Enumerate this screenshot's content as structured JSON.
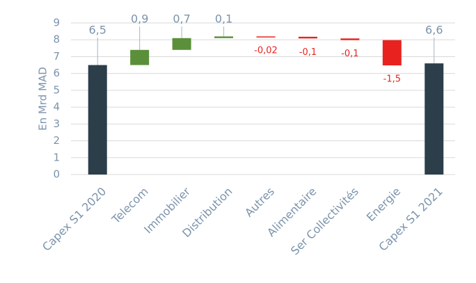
{
  "chart_data": {
    "type": "waterfall",
    "y_label": "En Mrd MAD",
    "categories": [
      "Capex S1 2020",
      "Telecom",
      "Immobilier",
      "Distribution",
      "Autres",
      "Alimentaire",
      "Ser Collectivités",
      "Energie",
      "Capex S1 2021"
    ],
    "values": [
      6.5,
      0.9,
      0.7,
      0.1,
      -0.02,
      -0.1,
      -0.1,
      -1.5,
      6.6
    ],
    "value_labels": [
      "6,5",
      "0,9",
      "0,7",
      "0,1",
      "-0,02",
      "-0,1",
      "-0,1",
      "-1,5",
      "6,6"
    ],
    "colors": [
      "#2c3e4a",
      "#5b8f3a",
      "#5b8f3a",
      "#5b8f3a",
      "#e8231f",
      "#e8231f",
      "#e8231f",
      "#e8231f",
      "#2c3e4a"
    ],
    "ylim": [
      0,
      9
    ],
    "yticks": [
      0,
      1,
      2,
      3,
      4,
      5,
      6,
      7,
      8,
      9
    ],
    "grid": true
  }
}
